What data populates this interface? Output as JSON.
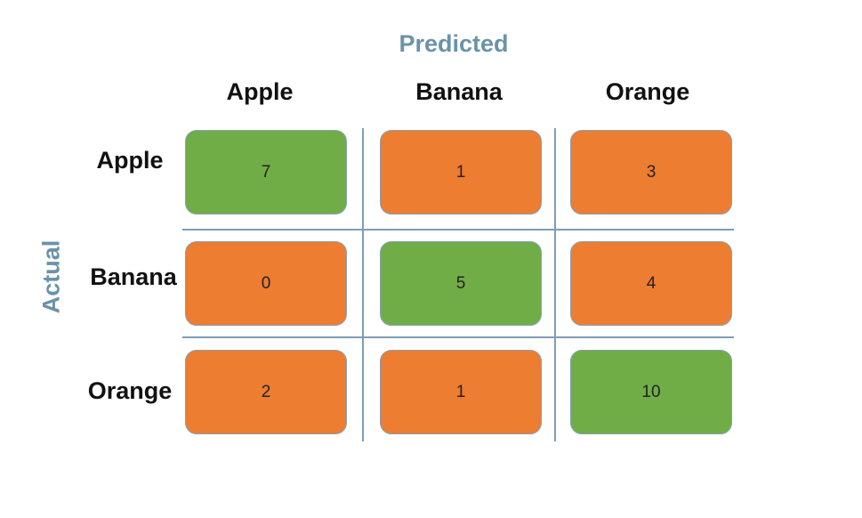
{
  "predicted_label": "Predicted",
  "actual_label": "Actual",
  "column_headers": [
    "Apple",
    "Banana",
    "Orange"
  ],
  "row_headers": [
    "Apple",
    "Banana",
    "Orange"
  ],
  "matrix": [
    [
      "7",
      "1",
      "3"
    ],
    [
      "0",
      "5",
      "4"
    ],
    [
      "2",
      "1",
      "10"
    ]
  ],
  "colors": {
    "correct": "#70ad47",
    "incorrect": "#ed7d31",
    "axis_title": "#6b93a8",
    "gridline": "#7f9db7"
  }
}
